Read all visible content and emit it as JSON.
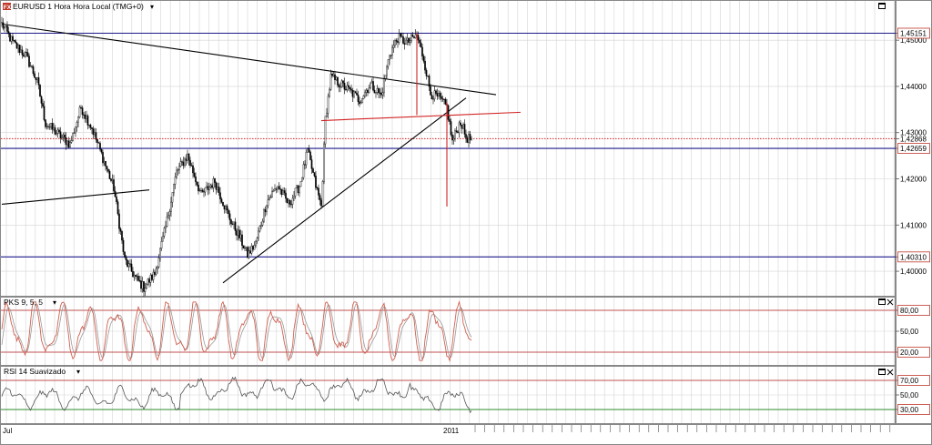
{
  "window": {
    "title": "EURUSD 1 Hora Hora Local (TMG+0)",
    "title_icon_label": "FX"
  },
  "colors": {
    "background": "#ffffff",
    "grid": "#d4d4d4",
    "candle": "#000000",
    "trendline": "#000000",
    "horizontal_line": "#1a1a8c",
    "red_line": "#d22222",
    "price_tag_border": "#c0392b",
    "stoch_k": "#d06050",
    "stoch_d": "#9a9a9a",
    "rsi": "#555555",
    "level_red": "#c05050",
    "level_green": "#2e8b2e"
  },
  "price_panel": {
    "yaxis_labels": [
      "1,45000",
      "1,44000",
      "1,43000",
      "1,42000",
      "1,41000",
      "1,40000"
    ],
    "price_tags": [
      {
        "label": "1,45151",
        "value": 1.45151,
        "style": "boxed",
        "line": "blue"
      },
      {
        "label": "1,42868",
        "value": 1.42868,
        "style": "plain",
        "line": "dotted-red"
      },
      {
        "label": "1,42659",
        "value": 1.42659,
        "style": "boxed",
        "line": "blue"
      },
      {
        "label": "1,40310",
        "value": 1.4031,
        "style": "boxed",
        "line": "blue"
      }
    ]
  },
  "stoch_panel": {
    "title": "PKS 9, 5, 5",
    "yaxis_labels": [
      {
        "label": "80,00",
        "value": 80,
        "boxed": true
      },
      {
        "label": "50,00",
        "value": 50,
        "boxed": false
      },
      {
        "label": "20,00",
        "value": 20,
        "boxed": true
      }
    ]
  },
  "rsi_panel": {
    "title": "RSI 14 Suavizado",
    "yaxis_labels": [
      {
        "label": "70,00",
        "value": 70,
        "boxed": true
      },
      {
        "label": "50,00",
        "value": 50,
        "boxed": false
      },
      {
        "label": "30,00",
        "value": 30,
        "boxed": true
      }
    ]
  },
  "xaxis": {
    "labels": [
      {
        "label": "Jul",
        "bar": 0
      },
      {
        "label": "2011",
        "bar": 330
      }
    ]
  },
  "chart_data": {
    "type": "candlestick",
    "symbol": "EURUSD",
    "timeframe": "1 Hora",
    "ylim": [
      1.3945,
      1.4585
    ],
    "bar_count": 345,
    "grid": true,
    "price_keypoints": [
      [
        0,
        1.4535
      ],
      [
        8,
        1.4495
      ],
      [
        18,
        1.4465
      ],
      [
        26,
        1.441
      ],
      [
        32,
        1.432
      ],
      [
        42,
        1.4295
      ],
      [
        50,
        1.4275
      ],
      [
        58,
        1.4355
      ],
      [
        66,
        1.431
      ],
      [
        74,
        1.4245
      ],
      [
        82,
        1.418
      ],
      [
        90,
        1.4025
      ],
      [
        98,
        1.3985
      ],
      [
        104,
        1.3965
      ],
      [
        112,
        1.3995
      ],
      [
        120,
        1.4095
      ],
      [
        128,
        1.4215
      ],
      [
        136,
        1.425
      ],
      [
        146,
        1.4165
      ],
      [
        156,
        1.4195
      ],
      [
        166,
        1.412
      ],
      [
        174,
        1.4075
      ],
      [
        180,
        1.4035
      ],
      [
        186,
        1.406
      ],
      [
        194,
        1.415
      ],
      [
        202,
        1.4185
      ],
      [
        210,
        1.4145
      ],
      [
        218,
        1.4185
      ],
      [
        224,
        1.426
      ],
      [
        230,
        1.4185
      ],
      [
        234,
        1.414
      ],
      [
        237,
        1.433
      ],
      [
        241,
        1.442
      ],
      [
        248,
        1.4405
      ],
      [
        255,
        1.439
      ],
      [
        262,
        1.437
      ],
      [
        270,
        1.4405
      ],
      [
        278,
        1.438
      ],
      [
        284,
        1.447
      ],
      [
        290,
        1.4505
      ],
      [
        297,
        1.4495
      ],
      [
        304,
        1.451
      ],
      [
        309,
        1.446
      ],
      [
        314,
        1.4385
      ],
      [
        320,
        1.4375
      ],
      [
        326,
        1.4355
      ],
      [
        330,
        1.428
      ],
      [
        336,
        1.4325
      ],
      [
        340,
        1.429
      ],
      [
        345,
        1.4283
      ]
    ],
    "trendlines": [
      {
        "color": "black",
        "points": [
          [
            0,
            1.4535
          ],
          [
            362,
            1.4382
          ]
        ]
      },
      {
        "color": "black",
        "points": [
          [
            0,
            1.4145
          ],
          [
            108,
            1.4176
          ]
        ]
      },
      {
        "color": "black",
        "points": [
          [
            162,
            1.3975
          ],
          [
            340,
            1.4375
          ]
        ]
      },
      {
        "color": "red",
        "points": [
          [
            234,
            1.4326
          ],
          [
            380,
            1.4344
          ]
        ]
      },
      {
        "color": "red",
        "points": [
          [
            304,
            1.4515
          ],
          [
            304,
            1.4338
          ]
        ]
      },
      {
        "color": "red",
        "points": [
          [
            326,
            1.4365
          ],
          [
            326,
            1.414
          ]
        ]
      }
    ],
    "horizontal_lines": [
      {
        "value": 1.45151,
        "color": "blue"
      },
      {
        "value": 1.42868,
        "color": "red-dotted"
      },
      {
        "value": 1.42659,
        "color": "blue"
      },
      {
        "value": 1.4031,
        "color": "blue"
      }
    ],
    "stochastic": {
      "name": "PKS 9, 5, 5",
      "levels": [
        80,
        20
      ],
      "ylim": [
        0,
        100
      ]
    },
    "rsi": {
      "name": "RSI 14 Suavizado",
      "levels": [
        70,
        30
      ],
      "ylim": [
        0,
        100
      ]
    }
  }
}
